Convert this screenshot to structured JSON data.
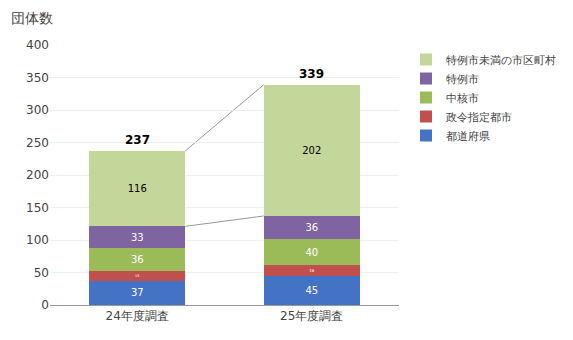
{
  "chart_data": {
    "type": "bar",
    "title": "団体数",
    "categories": [
      "24年度調査",
      "25年度調査"
    ],
    "series": [
      {
        "name": "都道府県",
        "color": "#4472C4",
        "values": [
          37,
          45
        ]
      },
      {
        "name": "政令指定都市",
        "color": "#C0504D",
        "values": [
          15,
          16
        ]
      },
      {
        "name": "中核市",
        "color": "#9BBB59",
        "values": [
          36,
          40
        ]
      },
      {
        "name": "特例市",
        "color": "#8064A2",
        "values": [
          33,
          36
        ]
      },
      {
        "name": "特例市未満の市区町村",
        "color": "#C4D79B",
        "values": [
          116,
          202
        ]
      }
    ],
    "totals": [
      237,
      339
    ],
    "stacked": true,
    "data_labels": true,
    "ylim": [
      0,
      400
    ],
    "yticks": [
      0,
      50,
      100,
      150,
      200,
      250,
      300,
      350,
      400
    ],
    "grid": true,
    "legend": "right"
  }
}
